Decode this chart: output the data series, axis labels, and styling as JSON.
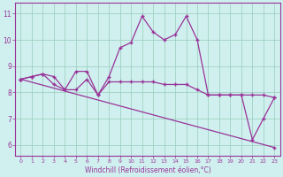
{
  "line1_x": [
    0,
    1,
    2,
    3,
    4,
    5,
    6,
    7,
    8,
    9,
    10,
    11,
    12,
    13,
    14,
    15,
    16,
    17,
    18,
    19,
    20,
    21,
    22,
    23
  ],
  "line1_y": [
    8.5,
    8.6,
    8.7,
    8.6,
    8.1,
    8.8,
    8.8,
    7.9,
    8.6,
    9.7,
    9.9,
    10.9,
    10.3,
    10.0,
    10.2,
    10.9,
    10.0,
    7.9,
    7.9,
    7.9,
    7.9,
    6.2,
    7.0,
    7.8
  ],
  "line2_x": [
    0,
    1,
    2,
    3,
    4,
    5,
    6,
    7,
    8,
    9,
    10,
    11,
    12,
    13,
    14,
    15,
    16,
    17,
    18,
    19,
    20,
    21,
    22,
    23
  ],
  "line2_y": [
    8.5,
    8.6,
    8.7,
    8.3,
    8.1,
    8.1,
    8.5,
    7.9,
    8.4,
    8.4,
    8.4,
    8.4,
    8.4,
    8.3,
    8.3,
    8.3,
    8.1,
    7.9,
    7.9,
    7.9,
    7.9,
    7.9,
    7.9,
    7.8
  ],
  "line3_x": [
    0,
    23
  ],
  "line3_y": [
    8.5,
    5.9
  ],
  "color": "#993399",
  "bg_color": "#cff0ee",
  "grid_color": "#99ccbb",
  "xlabel": "Windchill (Refroidissement éolien,°C)",
  "xlim": [
    -0.5,
    23.5
  ],
  "ylim": [
    5.6,
    11.4
  ],
  "yticks": [
    6,
    7,
    8,
    9,
    10,
    11
  ],
  "xticks": [
    0,
    1,
    2,
    3,
    4,
    5,
    6,
    7,
    8,
    9,
    10,
    11,
    12,
    13,
    14,
    15,
    16,
    17,
    18,
    19,
    20,
    21,
    22,
    23
  ],
  "marker": "+",
  "markersize": 3.5,
  "linewidth": 0.9,
  "xlabel_fontsize": 5.5,
  "tick_fontsize_x": 4.5,
  "tick_fontsize_y": 5.5
}
